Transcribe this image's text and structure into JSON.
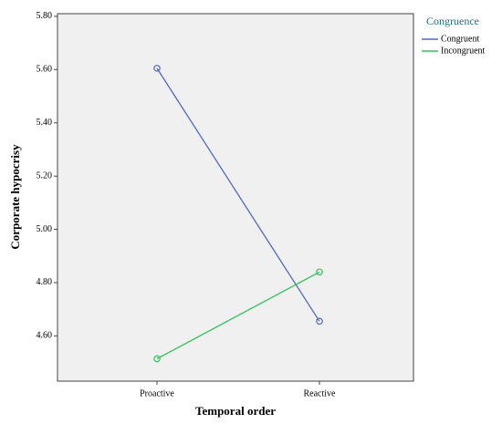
{
  "chart_data": {
    "type": "line",
    "x_label": "Temporal order",
    "y_label": "Corporate hypocrisy",
    "categories": [
      "Proactive",
      "Reactive"
    ],
    "series": [
      {
        "name": "Congruent",
        "color": "#5068c0",
        "values": [
          5.605,
          4.655
        ]
      },
      {
        "name": "Incongruent",
        "color": "#2ec45a",
        "values": [
          4.514,
          4.84
        ]
      }
    ],
    "legend_title": "Congruence",
    "ylim": [
      4.43,
      5.81
    ],
    "yticks": [
      {
        "value": 4.6,
        "label": "4.60"
      },
      {
        "value": 4.8,
        "label": "4.80"
      },
      {
        "value": 5.0,
        "label": "5.00"
      },
      {
        "value": 5.2,
        "label": "5.20"
      },
      {
        "value": 5.4,
        "label": "5.40"
      },
      {
        "value": 5.6,
        "label": "5.60"
      },
      {
        "value": 5.8,
        "label": "5.80"
      }
    ],
    "legend_position": "right"
  }
}
